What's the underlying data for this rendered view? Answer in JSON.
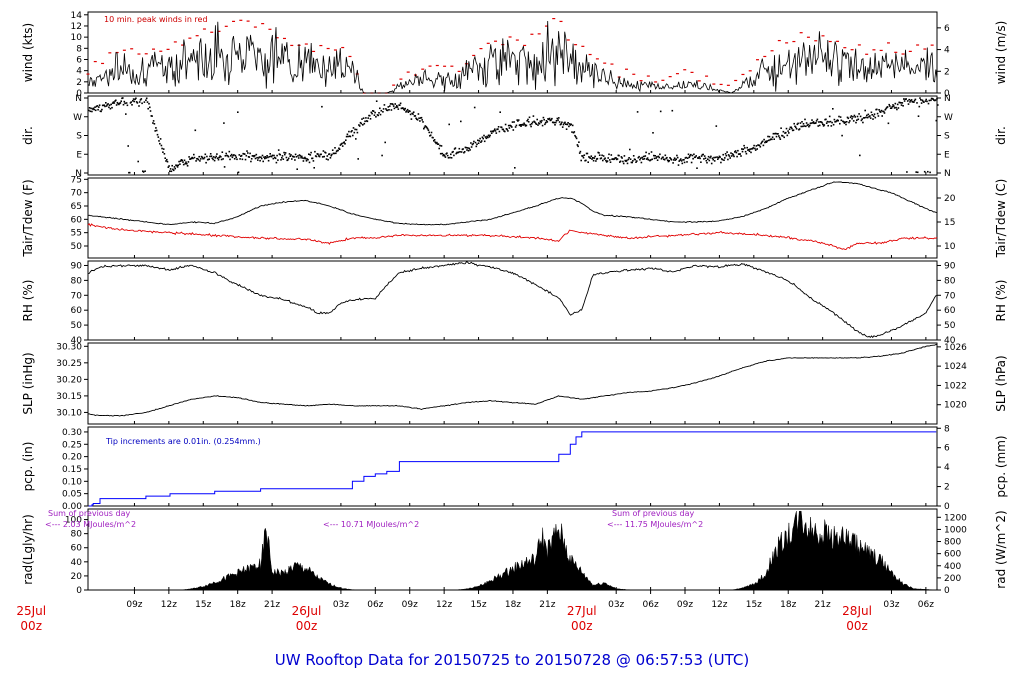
{
  "title": "UW Rooftop Data for 20150725  to  20150728 @ 06:57:53  (UTC)",
  "colors": {
    "black": "#000000",
    "red": "#e00000",
    "blue": "#0000ff",
    "purple": "#a020c0",
    "day": "#d00000",
    "title": "#0000d0"
  },
  "time_axis": {
    "start_hours_from_25jul_00z": 4.95,
    "end_hours_from_25jul_00z": 78.97,
    "hour_ticks": [
      {
        "h": 9,
        "label": "09z"
      },
      {
        "h": 12,
        "label": "12z"
      },
      {
        "h": 15,
        "label": "15z"
      },
      {
        "h": 18,
        "label": "18z"
      },
      {
        "h": 21,
        "label": "21z"
      },
      {
        "h": 27,
        "label": "03z"
      },
      {
        "h": 30,
        "label": "06z"
      },
      {
        "h": 33,
        "label": "09z"
      },
      {
        "h": 36,
        "label": "12z"
      },
      {
        "h": 39,
        "label": "15z"
      },
      {
        "h": 42,
        "label": "18z"
      },
      {
        "h": 45,
        "label": "21z"
      },
      {
        "h": 51,
        "label": "03z"
      },
      {
        "h": 54,
        "label": "06z"
      },
      {
        "h": 57,
        "label": "09z"
      },
      {
        "h": 60,
        "label": "12z"
      },
      {
        "h": 63,
        "label": "15z"
      },
      {
        "h": 66,
        "label": "18z"
      },
      {
        "h": 69,
        "label": "21z"
      },
      {
        "h": 75,
        "label": "03z"
      },
      {
        "h": 78,
        "label": "06z"
      }
    ],
    "day_ticks": [
      {
        "h": 0,
        "day": "25Jul",
        "z": "00z"
      },
      {
        "h": 24,
        "day": "26Jul",
        "z": "00z"
      },
      {
        "h": 48,
        "day": "27Jul",
        "z": "00z"
      },
      {
        "h": 72,
        "day": "28Jul",
        "z": "00z"
      }
    ]
  },
  "panels": [
    {
      "id": "wind",
      "left_label": "wind (kts)",
      "right_label": "wind (m/s)",
      "left_ticks": [
        "0",
        "2",
        "4",
        "6",
        "8",
        "10",
        "12",
        "14"
      ],
      "left_range": [
        0,
        14.5
      ],
      "right_ticks": [
        "0",
        "2",
        "4",
        "6"
      ],
      "right_range_ms": [
        0,
        7.46
      ],
      "annotation": "10 min. peak winds in red"
    },
    {
      "id": "dir",
      "left_label": "dir.",
      "right_label": "dir.",
      "left_ticks": [
        "N",
        "E",
        "S",
        "W",
        "N"
      ],
      "right_ticks": [
        "N",
        "E",
        "S",
        "W",
        "N"
      ],
      "range_deg": [
        0,
        360
      ]
    },
    {
      "id": "temp",
      "left_label": "Tair/Tdew (F)",
      "right_label": "Tair/Tdew (C)",
      "left_ticks": [
        "50",
        "55",
        "60",
        "65",
        "70",
        "75"
      ],
      "left_range": [
        45.5,
        75.5
      ],
      "right_ticks": [
        "10",
        "15",
        "20"
      ],
      "right_range_c": [
        7.5,
        24.17
      ]
    },
    {
      "id": "rh",
      "left_label": "RH (%)",
      "right_label": "RH (%)",
      "left_ticks": [
        "40",
        "50",
        "60",
        "70",
        "80",
        "90"
      ],
      "right_ticks": [
        "40",
        "50",
        "60",
        "70",
        "80",
        "90"
      ],
      "range": [
        40,
        93
      ]
    },
    {
      "id": "slp",
      "left_label": "SLP (inHg)",
      "right_label": "SLP (hPa)",
      "left_ticks": [
        "30.10",
        "30.15",
        "30.20",
        "30.25",
        "30.30"
      ],
      "left_range": [
        30.065,
        30.31
      ],
      "right_ticks": [
        "1020",
        "1022",
        "1024",
        "1026"
      ],
      "right_range_hpa": [
        1018.0,
        1026.4
      ]
    },
    {
      "id": "pcp",
      "left_label": "pcp. (in)",
      "right_label": "pcp. (mm)",
      "left_ticks": [
        "0.00",
        "0.05",
        "0.10",
        "0.15",
        "0.20",
        "0.25",
        "0.30"
      ],
      "left_range": [
        0,
        0.32
      ],
      "right_ticks": [
        "0",
        "2",
        "4",
        "6",
        "8"
      ],
      "right_range_mm": [
        0,
        8.13
      ],
      "annotation": "Tip increments are 0.01in. (0.254mm.)"
    },
    {
      "id": "rad",
      "left_label": "rad(Lgly/hr)",
      "right_label": "rad (W/m^2)",
      "left_ticks": [
        "0",
        "20",
        "40",
        "60",
        "80",
        "100"
      ],
      "left_range": [
        0,
        115
      ],
      "right_ticks": [
        "0",
        "200",
        "400",
        "600",
        "800",
        "1000",
        "1200"
      ],
      "right_range_wm2": [
        0,
        1337
      ]
    }
  ],
  "radiation_notes": [
    {
      "line1": "Sum of previous day",
      "line2": "<--- 2.03 MJoules/m^2"
    },
    {
      "line1": "",
      "line2": "<--- 10.71 MJoules/m^2"
    },
    {
      "line1": "Sum of previous day",
      "line2": "<--- 11.75 MJoules/m^2"
    }
  ],
  "chart_data": {
    "type": "line",
    "title": "UW Rooftop Data for 20150725  to  20150728 @ 06:57:53  (UTC)",
    "x_units": "hours after 25Jul 00z",
    "xlim": [
      4.95,
      78.97
    ],
    "series": [
      {
        "name": "wind (kts)",
        "x": [
          5,
          6,
          8,
          10,
          12,
          14,
          16,
          18,
          20,
          22,
          24,
          26,
          28,
          29,
          31,
          33,
          35,
          37,
          39,
          41,
          43,
          45,
          46,
          47,
          48,
          49,
          51,
          53,
          55,
          57,
          59,
          61,
          63,
          65,
          67,
          69,
          71,
          73,
          75,
          77,
          78.9
        ],
        "y": [
          2,
          3,
          4.5,
          4,
          5,
          6,
          7,
          8,
          7.5,
          6,
          5,
          5,
          4,
          0,
          0,
          2,
          2.5,
          2,
          5,
          6,
          5.5,
          7,
          9,
          6,
          5,
          4,
          2,
          1.5,
          1,
          1.5,
          1,
          0,
          3,
          5,
          6.5,
          6,
          5.5,
          4,
          5,
          4.5,
          5
        ]
      },
      {
        "name": "dir. (deg)",
        "x": [
          5,
          8,
          10,
          12,
          14,
          16,
          18,
          20,
          22,
          24,
          26,
          27,
          28,
          30,
          32,
          34,
          36,
          38,
          40,
          42,
          44,
          46,
          47,
          48,
          50,
          52,
          54,
          56,
          58,
          60,
          62,
          64,
          66,
          68,
          70,
          72,
          74,
          76,
          78.9
        ],
        "y": [
          300,
          345,
          350,
          10,
          70,
          75,
          80,
          75,
          78,
          72,
          85,
          130,
          200,
          300,
          320,
          250,
          80,
          120,
          190,
          230,
          245,
          250,
          230,
          80,
          70,
          60,
          80,
          60,
          70,
          70,
          100,
          150,
          210,
          240,
          250,
          260,
          290,
          340,
          350
        ]
      },
      {
        "name": "Tair (F)",
        "x": [
          5,
          8,
          10,
          12,
          14,
          16,
          18,
          20,
          22,
          24,
          26,
          28,
          30,
          32,
          34,
          36,
          38,
          40,
          42,
          44,
          46,
          47,
          48,
          49,
          50,
          52,
          54,
          56,
          58,
          60,
          62,
          64,
          66,
          68,
          70,
          72,
          74,
          75,
          76,
          78,
          78.9
        ],
        "y": [
          61.5,
          60,
          59,
          58,
          59,
          58.5,
          61,
          65,
          66.5,
          67,
          65,
          62,
          60,
          58.5,
          58,
          58,
          59,
          60,
          62.5,
          65,
          68,
          68,
          66,
          63,
          61.5,
          61,
          60,
          59,
          59,
          59.5,
          61,
          64,
          68,
          71,
          74,
          73.5,
          71,
          70,
          68,
          64,
          62.5
        ]
      },
      {
        "name": "Tdew (F)",
        "x": [
          5,
          8,
          12,
          16,
          20,
          24,
          26,
          28,
          30,
          32,
          36,
          40,
          44,
          46,
          47,
          48,
          50,
          52,
          56,
          60,
          64,
          66,
          68,
          70,
          71,
          72,
          74,
          76,
          78,
          78.9
        ],
        "y": [
          58,
          56,
          55,
          54,
          53,
          52.5,
          51,
          53,
          53,
          54,
          54,
          54,
          53,
          52,
          56,
          55,
          54,
          53,
          54,
          55,
          54,
          53,
          52,
          50,
          48.5,
          51,
          51,
          53,
          53,
          53
        ]
      },
      {
        "name": "RH (%)",
        "x": [
          5,
          6,
          8,
          10,
          12,
          14,
          16,
          18,
          20,
          22,
          24,
          25,
          26,
          27,
          28,
          30,
          32,
          34,
          36,
          38,
          40,
          42,
          44,
          46,
          47,
          48,
          49,
          50,
          52,
          54,
          56,
          58,
          60,
          62,
          64,
          66,
          68,
          70,
          71,
          72,
          73,
          74,
          76,
          78,
          78.9
        ],
        "y": [
          85,
          89,
          90,
          90,
          87,
          90,
          85,
          77,
          70,
          67,
          62,
          58,
          58,
          65,
          67,
          68,
          85,
          88,
          90,
          92,
          89,
          85,
          77,
          68,
          57,
          60,
          84,
          85,
          87,
          88,
          86,
          90,
          89,
          91,
          86,
          80,
          68,
          58,
          52,
          46,
          42,
          43,
          50,
          58,
          70
        ]
      },
      {
        "name": "SLP (inHg)",
        "x": [
          5,
          6,
          8,
          10,
          12,
          14,
          16,
          18,
          20,
          22,
          24,
          26,
          28,
          30,
          32,
          34,
          36,
          38,
          40,
          42,
          44,
          46,
          48,
          50,
          52,
          54,
          56,
          58,
          60,
          62,
          64,
          66,
          68,
          70,
          72,
          74,
          76,
          78,
          78.9
        ],
        "y": [
          30.095,
          30.09,
          30.09,
          30.1,
          30.12,
          30.14,
          30.15,
          30.145,
          30.13,
          30.125,
          30.12,
          30.125,
          30.12,
          30.12,
          30.12,
          30.11,
          30.12,
          30.13,
          30.135,
          30.13,
          30.125,
          30.15,
          30.14,
          30.15,
          30.16,
          30.165,
          30.175,
          30.19,
          30.21,
          30.235,
          30.255,
          30.265,
          30.265,
          30.265,
          30.265,
          30.27,
          30.28,
          30.3,
          30.305
        ]
      },
      {
        "name": "pcp. (in)",
        "x": [
          5,
          5.3,
          5.4,
          6,
          8,
          10,
          12,
          12.1,
          14,
          16,
          18,
          20,
          22,
          24,
          26,
          27.5,
          28,
          29,
          30,
          31,
          32,
          32.1,
          34,
          36,
          38,
          40,
          42,
          44,
          46,
          47,
          47.5,
          48,
          49,
          50,
          52,
          54,
          56,
          58,
          60,
          62,
          64,
          66,
          68,
          70,
          72,
          74,
          76,
          78.9
        ],
        "y": [
          0,
          0.005,
          0.01,
          0.03,
          0.03,
          0.04,
          0.04,
          0.05,
          0.05,
          0.06,
          0.06,
          0.07,
          0.07,
          0.07,
          0.07,
          0.07,
          0.1,
          0.12,
          0.13,
          0.14,
          0.14,
          0.18,
          0.18,
          0.18,
          0.18,
          0.18,
          0.18,
          0.18,
          0.21,
          0.25,
          0.28,
          0.3,
          0.3,
          0.3,
          0.3,
          0.3,
          0.3,
          0.3,
          0.3,
          0.3,
          0.3,
          0.3,
          0.3,
          0.3,
          0.3,
          0.3,
          0.3,
          0.3
        ]
      },
      {
        "name": "rad (W/m^2)",
        "x": [
          5,
          13,
          14,
          15,
          16,
          17,
          18,
          19,
          20,
          20.5,
          21,
          22,
          23,
          24,
          25,
          26,
          27,
          28,
          29,
          37,
          38,
          39,
          40,
          41,
          42,
          43,
          44,
          44.5,
          45,
          46,
          47,
          48,
          49,
          50,
          51,
          52,
          53,
          61,
          62,
          63,
          64,
          65,
          66,
          67,
          68,
          69,
          70,
          71,
          72,
          73,
          74,
          75,
          76,
          77,
          78.9
        ],
        "y": [
          0,
          0,
          20,
          60,
          130,
          200,
          280,
          350,
          420,
          1000,
          300,
          280,
          400,
          350,
          200,
          100,
          30,
          5,
          0,
          0,
          20,
          60,
          150,
          250,
          350,
          450,
          500,
          900,
          650,
          1000,
          500,
          300,
          80,
          120,
          20,
          5,
          0,
          0,
          30,
          100,
          250,
          700,
          900,
          1200,
          1000,
          950,
          900,
          850,
          750,
          600,
          500,
          300,
          100,
          20,
          0
        ]
      }
    ]
  }
}
